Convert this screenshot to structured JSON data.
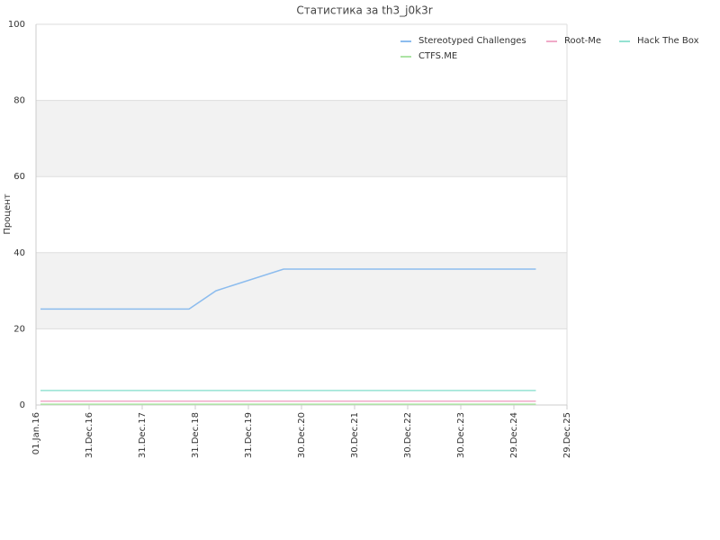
{
  "chart_data": {
    "type": "line",
    "title": "Статистика за th3_j0k3r",
    "y_label": "Процент",
    "x": [
      "2016-02-01",
      "2018-11-18",
      "2019-05-22",
      "2020-08-29",
      "2025-05-29"
    ],
    "series": [
      {
        "name": "Stereotyped Challenges",
        "color": "#8cbcee",
        "values": [
          25.2,
          25.2,
          30,
          35.7,
          35.7
        ]
      },
      {
        "name": "Root-Me",
        "color": "#f0aac8",
        "values": [
          1,
          1,
          1,
          1,
          1
        ]
      },
      {
        "name": "Hack The Box",
        "color": "#94e2d2",
        "values": [
          3.8,
          3.8,
          3.8,
          3.8,
          3.8
        ]
      },
      {
        "name": "CTFS.ME",
        "color": "#ace4a4",
        "values": [
          0.2,
          0.2,
          0.2,
          0.2,
          0.2
        ]
      }
    ],
    "xlim": [
      "2016-01-01",
      "2025-12-29"
    ],
    "xticks": [
      {
        "value": "2016-01-01",
        "label": "01.Jan.16"
      },
      {
        "value": "2016-12-31",
        "label": "31.Dec.16"
      },
      {
        "value": "2017-12-31",
        "label": "31.Dec.17"
      },
      {
        "value": "2018-12-31",
        "label": "31.Dec.18"
      },
      {
        "value": "2019-12-31",
        "label": "31.Dec.19"
      },
      {
        "value": "2020-12-30",
        "label": "30.Dec.20"
      },
      {
        "value": "2021-12-30",
        "label": "30.Dec.21"
      },
      {
        "value": "2022-12-30",
        "label": "30.Dec.22"
      },
      {
        "value": "2023-12-30",
        "label": "30.Dec.23"
      },
      {
        "value": "2024-12-29",
        "label": "29.Dec.24"
      },
      {
        "value": "2025-12-29",
        "label": "29.Dec.25"
      }
    ],
    "ylim": [
      0,
      100
    ],
    "yticks": [
      0,
      20,
      40,
      60,
      80,
      100
    ],
    "grid": true,
    "banded": true,
    "legend": "top-right"
  }
}
